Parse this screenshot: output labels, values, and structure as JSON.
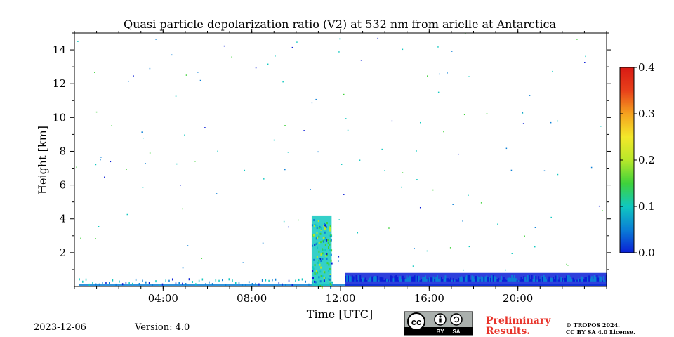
{
  "chart_data": {
    "type": "heatmap",
    "title": "Quasi particle depolarization ratio (V2) at 532 nm from arielle at Antarctica",
    "xlabel": "Time [UTC]",
    "ylabel": "Height [km]",
    "x_range_hours": [
      0,
      24
    ],
    "y_range_km": [
      0,
      15
    ],
    "x_ticks": [
      {
        "value": 4,
        "label": "04:00"
      },
      {
        "value": 8,
        "label": "08:00"
      },
      {
        "value": 12,
        "label": "12:00"
      },
      {
        "value": 16,
        "label": "16:00"
      },
      {
        "value": 20,
        "label": "20:00"
      }
    ],
    "y_ticks": [
      {
        "value": 2,
        "label": "2"
      },
      {
        "value": 4,
        "label": "4"
      },
      {
        "value": 6,
        "label": "6"
      },
      {
        "value": 8,
        "label": "8"
      },
      {
        "value": 10,
        "label": "10"
      },
      {
        "value": 12,
        "label": "12"
      },
      {
        "value": 14,
        "label": "14"
      }
    ],
    "colorbar": {
      "range": [
        0.0,
        0.4
      ],
      "ticks": [
        {
          "value": 0.0,
          "label": "0.0"
        },
        {
          "value": 0.1,
          "label": "0.1"
        },
        {
          "value": 0.2,
          "label": "0.2"
        },
        {
          "value": 0.3,
          "label": "0.3"
        },
        {
          "value": 0.4,
          "label": "0.4"
        }
      ],
      "colors": [
        "#0a1fd6",
        "#0a7fd6",
        "#10c8c0",
        "#3fd23a",
        "#b8e82a",
        "#f3e82a",
        "#f5a21f",
        "#e8401a",
        "#d81a14"
      ]
    },
    "features": [
      {
        "name": "surface layer",
        "t_start": 0.2,
        "t_end": 24,
        "h_top": 0.15,
        "value": 0.05
      },
      {
        "name": "plume",
        "t_start": 10.7,
        "t_end": 11.6,
        "h_top": 4.2,
        "value": 0.1
      },
      {
        "name": "boundary layer",
        "t_start": 12.2,
        "t_end": 24,
        "h_top": 0.8,
        "value": 0.02
      }
    ]
  },
  "footer": {
    "date": "2023-12-06",
    "version": "Version: 4.0",
    "license_badge": {
      "cc": "cc",
      "by": "BY",
      "sa": "SA"
    },
    "preliminary_line1": "Preliminary",
    "preliminary_line2": "Results.",
    "copyright_line1": "© TROPOS 2024.",
    "copyright_line2": "CC BY SA 4.0 License."
  }
}
